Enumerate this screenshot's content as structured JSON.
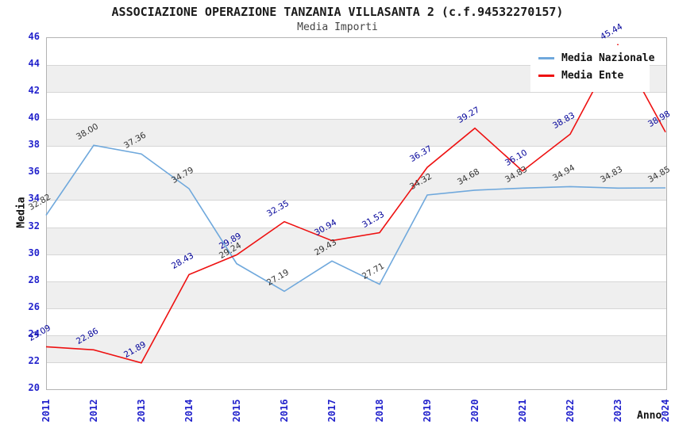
{
  "page": {
    "title": "ASSOCIAZIONE OPERAZIONE TANZANIA VILLASANTA 2 (c.f.94532270157)",
    "subtitle": "Media Importi"
  },
  "chart_data": {
    "type": "line",
    "title": "ASSOCIAZIONE OPERAZIONE TANZANIA VILLASANTA 2 (c.f.94532270157)",
    "subtitle": "Media Importi",
    "xlabel": "Anno",
    "ylabel": "Media",
    "x": [
      2011,
      2012,
      2013,
      2014,
      2015,
      2016,
      2017,
      2018,
      2019,
      2020,
      2021,
      2022,
      2023,
      2024
    ],
    "ylim": [
      20,
      46
    ],
    "ytick_step": 2,
    "grid": "horizontal-bands",
    "legend_position": "top-right",
    "series": [
      {
        "name": "Media Nazionale",
        "color": "#6FA8DC",
        "label_color": "#333333",
        "values": [
          32.82,
          38.0,
          37.36,
          34.79,
          29.24,
          27.19,
          29.43,
          27.71,
          34.32,
          34.68,
          34.83,
          34.94,
          34.83,
          34.85
        ]
      },
      {
        "name": "Media Ente",
        "color": "#EE1111",
        "label_color": "#000099",
        "values": [
          23.09,
          22.86,
          21.89,
          28.43,
          29.89,
          32.35,
          30.94,
          31.53,
          36.37,
          39.27,
          36.1,
          38.83,
          45.44,
          38.98
        ]
      }
    ],
    "colors": {
      "axis_text": "#2222CC",
      "band_gray": "#EFEFEF",
      "band_white": "#FFFFFF",
      "gridline": "#D6D6D6",
      "plot_border": "#B3B3B3",
      "title_text": "#1A1A1A"
    }
  }
}
